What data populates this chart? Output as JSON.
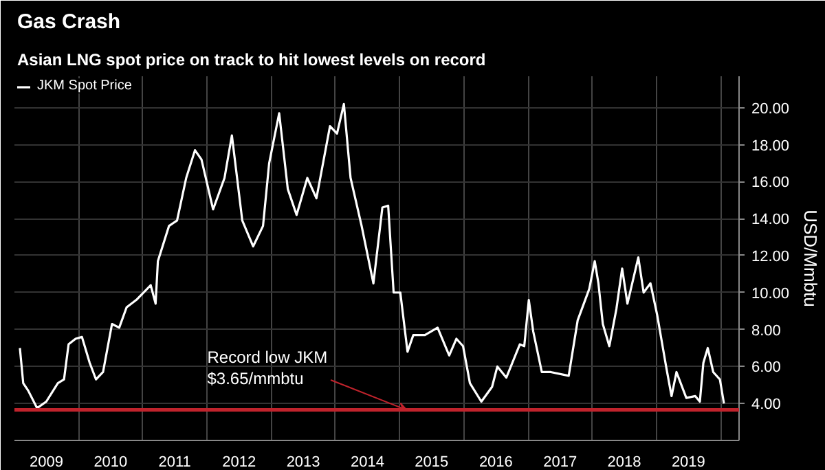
{
  "chart_data": {
    "type": "line",
    "title": "Gas Crash",
    "subtitle": "Asian LNG spot price on track to hit lowest levels on record",
    "ylabel": "USD/Mmbtu",
    "x": [
      "2009-02-01",
      "2009-02-20",
      "2009-03-20",
      "2009-05-10",
      "2009-07-01",
      "2009-09-05",
      "2009-10-10",
      "2009-11-05",
      "2009-12-15",
      "2010-01-20",
      "2010-03-05",
      "2010-04-10",
      "2010-05-20",
      "2010-07-10",
      "2010-08-20",
      "2010-10-01",
      "2010-11-25",
      "2011-02-15",
      "2011-03-15",
      "2011-03-28",
      "2011-05-30",
      "2011-07-15",
      "2011-09-05",
      "2011-10-25",
      "2011-12-01",
      "2012-02-05",
      "2012-04-10",
      "2012-05-22",
      "2012-07-20",
      "2012-09-20",
      "2012-11-15",
      "2012-12-20",
      "2013-02-15",
      "2013-04-05",
      "2013-05-25",
      "2013-07-25",
      "2013-09-15",
      "2013-12-01",
      "2014-01-10",
      "2014-02-18",
      "2014-03-28",
      "2014-05-30",
      "2014-08-05",
      "2014-09-25",
      "2014-10-28",
      "2014-11-28",
      "2015-01-05",
      "2015-02-15",
      "2015-03-20",
      "2015-05-25",
      "2015-08-05",
      "2015-10-10",
      "2015-11-20",
      "2015-12-28",
      "2016-02-05",
      "2016-04-10",
      "2016-06-10",
      "2016-07-10",
      "2016-08-30",
      "2016-11-15",
      "2016-12-10",
      "2017-01-05",
      "2017-01-30",
      "2017-03-20",
      "2017-05-10",
      "2017-08-20",
      "2017-10-10",
      "2017-12-15",
      "2018-01-15",
      "2018-02-05",
      "2018-03-02",
      "2018-04-08",
      "2018-05-18",
      "2018-06-20",
      "2018-07-20",
      "2018-09-20",
      "2018-10-20",
      "2018-11-28",
      "2019-01-05",
      "2019-02-25",
      "2019-03-28",
      "2019-04-25",
      "2019-06-20",
      "2019-08-10",
      "2019-09-05",
      "2019-09-25",
      "2019-10-20",
      "2019-11-20",
      "2019-12-28",
      "2020-01-20"
    ],
    "series": [
      {
        "name": "JKM Spot Price",
        "color": "#ffffff",
        "values": [
          7.0,
          5.1,
          4.7,
          3.75,
          4.1,
          5.1,
          5.3,
          7.2,
          7.5,
          7.6,
          6.2,
          5.3,
          5.7,
          8.3,
          8.1,
          9.2,
          9.6,
          10.4,
          9.4,
          11.7,
          13.6,
          13.9,
          16.2,
          17.7,
          17.2,
          14.5,
          16.2,
          18.5,
          13.9,
          12.5,
          13.6,
          17.0,
          19.7,
          15.6,
          14.2,
          16.2,
          15.1,
          19.0,
          18.6,
          20.2,
          16.2,
          13.6,
          10.5,
          14.6,
          14.7,
          10.0,
          10.0,
          6.8,
          7.7,
          7.7,
          8.1,
          6.6,
          7.5,
          7.1,
          5.1,
          4.1,
          4.9,
          6.0,
          5.4,
          7.2,
          7.1,
          9.6,
          7.9,
          5.7,
          5.7,
          5.5,
          8.5,
          10.2,
          11.7,
          10.5,
          8.3,
          7.1,
          9.1,
          11.3,
          9.4,
          11.9,
          10.0,
          10.5,
          8.8,
          6.0,
          4.4,
          5.7,
          4.3,
          4.4,
          4.1,
          6.2,
          7.0,
          5.7,
          5.3,
          4.0
        ]
      }
    ],
    "xlim": [
      "2009-01-01",
      "2020-04-15"
    ],
    "xticks": [
      {
        "value": "2009-07-02",
        "label": "2009"
      },
      {
        "value": "2010-01-01",
        "label": null
      },
      {
        "value": "2010-07-02",
        "label": "2010"
      },
      {
        "value": "2011-01-01",
        "label": null
      },
      {
        "value": "2011-07-02",
        "label": "2011"
      },
      {
        "value": "2012-01-01",
        "label": null
      },
      {
        "value": "2012-07-02",
        "label": "2012"
      },
      {
        "value": "2013-01-01",
        "label": null
      },
      {
        "value": "2013-07-02",
        "label": "2013"
      },
      {
        "value": "2014-01-01",
        "label": null
      },
      {
        "value": "2014-07-02",
        "label": "2014"
      },
      {
        "value": "2015-01-01",
        "label": null
      },
      {
        "value": "2015-07-02",
        "label": "2015"
      },
      {
        "value": "2016-01-01",
        "label": null
      },
      {
        "value": "2016-07-02",
        "label": "2016"
      },
      {
        "value": "2017-01-01",
        "label": null
      },
      {
        "value": "2017-07-02",
        "label": "2017"
      },
      {
        "value": "2018-01-01",
        "label": null
      },
      {
        "value": "2018-07-02",
        "label": "2018"
      },
      {
        "value": "2019-01-01",
        "label": null
      },
      {
        "value": "2019-07-02",
        "label": "2019"
      },
      {
        "value": "2020-01-01",
        "label": null
      }
    ],
    "ylim": [
      2,
      21.7
    ],
    "yticks": [
      {
        "value": 4,
        "label": "4.00"
      },
      {
        "value": 6,
        "label": "6.00"
      },
      {
        "value": 8,
        "label": "8.00"
      },
      {
        "value": 10,
        "label": "10.00"
      },
      {
        "value": 12,
        "label": "12.00"
      },
      {
        "value": 14,
        "label": "14.00"
      },
      {
        "value": 16,
        "label": "16.00"
      },
      {
        "value": 18,
        "label": "18.00"
      },
      {
        "value": 20,
        "label": "20.00"
      }
    ],
    "ref_lines": [
      {
        "axis": "y",
        "value": 3.65,
        "label": null,
        "color": "#c0232c"
      }
    ],
    "annotations": [
      {
        "text": "Record low JKM\n$3.65/mmbtu",
        "x": "2015-02-10",
        "y": 3.65
      }
    ],
    "grid": true,
    "legend": "top left",
    "line_style": "solid",
    "marker": "none"
  }
}
